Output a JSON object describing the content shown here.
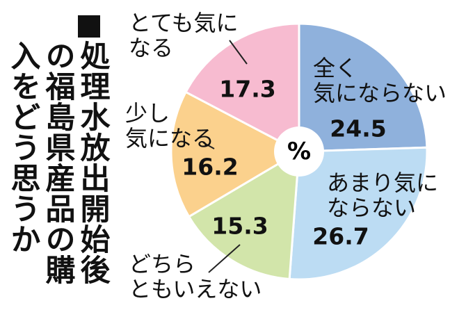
{
  "chart_data": {
    "type": "pie",
    "title": "処理水放出開始後の福島県産品の購入をどう思うか",
    "unit": "%",
    "categories": [
      "全く\n気にならない",
      "あまり気に\nならない",
      "どちら\nともいえない",
      "少し\n気になる",
      "とても気に\nなる"
    ],
    "values": [
      24.5,
      26.7,
      15.3,
      16.2,
      17.3
    ],
    "colors": [
      "#8fb1dc",
      "#bcdcf3",
      "#d2e5aa",
      "#fbd18d",
      "#f7bbd0"
    ]
  }
}
